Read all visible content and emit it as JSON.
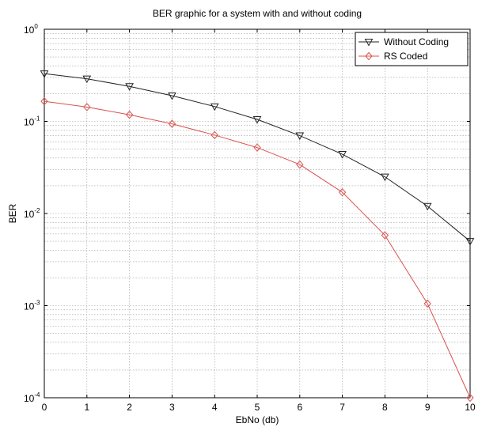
{
  "chart_data": {
    "type": "line",
    "title": "BER graphic for a system with and without coding",
    "xlabel": "EbNo (db)",
    "ylabel": "BER",
    "xlim": [
      0,
      10
    ],
    "ylim": [
      0.0001,
      1
    ],
    "yscale": "log",
    "grid": true,
    "legend_position": "top-right",
    "x_ticks": [
      "0",
      "1",
      "2",
      "3",
      "4",
      "5",
      "6",
      "7",
      "8",
      "9",
      "10"
    ],
    "y_ticks": [
      {
        "base": "10",
        "exp": "-4"
      },
      {
        "base": "10",
        "exp": "-3"
      },
      {
        "base": "10",
        "exp": "-2"
      },
      {
        "base": "10",
        "exp": "-1"
      },
      {
        "base": "10",
        "exp": "0"
      }
    ],
    "x": [
      0,
      1,
      2,
      3,
      4,
      5,
      6,
      7,
      8,
      9,
      10
    ],
    "series": [
      {
        "name": "Without Coding",
        "color": "#222222",
        "marker": "triangle-down",
        "values": [
          0.33,
          0.29,
          0.24,
          0.19,
          0.145,
          0.105,
          0.07,
          0.044,
          0.025,
          0.012,
          0.005
        ]
      },
      {
        "name": "RS Coded",
        "color": "#d9534f",
        "marker": "diamond",
        "values": [
          0.165,
          0.143,
          0.118,
          0.094,
          0.071,
          0.052,
          0.034,
          0.017,
          0.0058,
          0.00105,
          0.0001
        ]
      }
    ]
  }
}
